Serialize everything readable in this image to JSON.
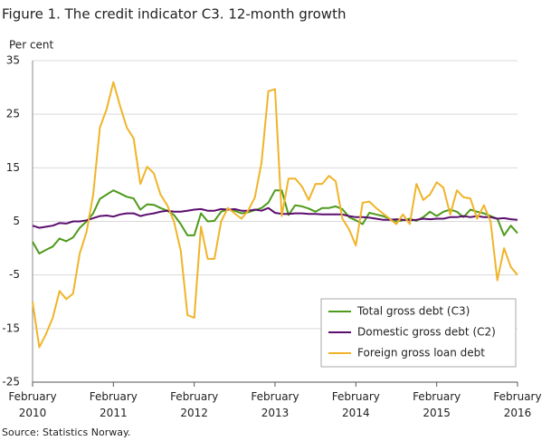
{
  "chart_data": {
    "type": "line",
    "title": "Figure 1. The credit indicator C3. 12-month growth",
    "y_label": "Per cent",
    "source": "Source: Statistics Norway.",
    "categories": [
      "February 2010",
      null,
      null,
      null,
      null,
      null,
      null,
      null,
      null,
      null,
      null,
      null,
      "February 2011",
      null,
      null,
      null,
      null,
      null,
      null,
      null,
      null,
      null,
      null,
      null,
      "February 2012",
      null,
      null,
      null,
      null,
      null,
      null,
      null,
      null,
      null,
      null,
      null,
      "February 2013",
      null,
      null,
      null,
      null,
      null,
      null,
      null,
      null,
      null,
      null,
      null,
      "February 2014",
      null,
      null,
      null,
      null,
      null,
      null,
      null,
      null,
      null,
      null,
      null,
      "February 2015",
      null,
      null,
      null,
      null,
      null,
      null,
      null,
      null,
      null,
      null,
      null,
      "February 2016"
    ],
    "series": [
      {
        "name": "Total gross debt (C3)",
        "color": "#4e9a1b",
        "values": [
          1.2,
          -1,
          -0.3,
          0.3,
          1.8,
          1.3,
          2,
          3.8,
          5,
          6.5,
          9.2,
          10,
          10.8,
          10.2,
          9.6,
          9.3,
          7.2,
          8.2,
          8.1,
          7.5,
          7,
          6.2,
          4.5,
          2.4,
          2.4,
          6.5,
          5,
          5.1,
          6.8,
          7.3,
          7,
          6.5,
          6.7,
          7.1,
          7.5,
          8.5,
          10.8,
          10.8,
          6.2,
          8,
          7.8,
          7.4,
          6.8,
          7.5,
          7.5,
          7.8,
          7.3,
          5.8,
          5.2,
          4.5,
          6.6,
          6.3,
          6,
          5.5,
          5,
          5.2,
          5.5,
          5.1,
          5.8,
          6.8,
          6,
          6.8,
          7.2,
          6.8,
          5.8,
          7.2,
          6.8,
          6.5,
          6,
          5.5,
          2.4,
          4.2,
          2.8
        ]
      },
      {
        "name": "Domestic gross debt (C2)",
        "color": "#5b0e6e",
        "values": [
          4.2,
          3.8,
          4,
          4.2,
          4.7,
          4.6,
          5,
          5,
          5.2,
          5.6,
          6,
          6.1,
          5.9,
          6.3,
          6.5,
          6.5,
          6,
          6.3,
          6.5,
          6.8,
          7,
          6.8,
          6.8,
          7,
          7.2,
          7.3,
          7,
          7,
          7.3,
          7.2,
          7.3,
          7,
          7,
          7.2,
          7,
          7.5,
          6.6,
          6.4,
          6.4,
          6.5,
          6.5,
          6.4,
          6.4,
          6.3,
          6.3,
          6.3,
          6.3,
          6,
          5.8,
          5.8,
          5.7,
          5.5,
          5.3,
          5.3,
          5.4,
          5.3,
          5.2,
          5.3,
          5.5,
          5.4,
          5.5,
          5.5,
          5.8,
          5.8,
          6,
          5.8,
          6,
          5.8,
          5.8,
          5.5,
          5.6,
          5.4,
          5.3
        ]
      },
      {
        "name": "Foreign gross loan debt",
        "color": "#f0b429",
        "values": [
          -10,
          -18.5,
          -16,
          -13,
          -8,
          -9.5,
          -8.5,
          -1,
          3,
          10,
          22.5,
          26,
          31,
          26.5,
          22.5,
          20.5,
          12,
          15.2,
          14,
          10,
          8,
          5,
          -0.5,
          -12.5,
          -13,
          4,
          -2,
          -2,
          5,
          7.5,
          6.5,
          5.5,
          7,
          9.5,
          16,
          29.3,
          29.7,
          6,
          13,
          13,
          11.5,
          9,
          12,
          12,
          13.5,
          12.5,
          5.5,
          3.5,
          0.5,
          8.5,
          8.7,
          7.5,
          6.5,
          5.5,
          4.5,
          6.3,
          4.5,
          12,
          9,
          10,
          12.3,
          11.3,
          6.3,
          10.8,
          9.5,
          9.3,
          5.5,
          8,
          5,
          -6,
          0,
          -3.5,
          -5
        ]
      }
    ],
    "ylim": [
      -25,
      35
    ],
    "yticks": [
      35,
      25,
      15,
      5,
      -5,
      -15,
      -25
    ],
    "grid": true,
    "legend": "lower right"
  }
}
